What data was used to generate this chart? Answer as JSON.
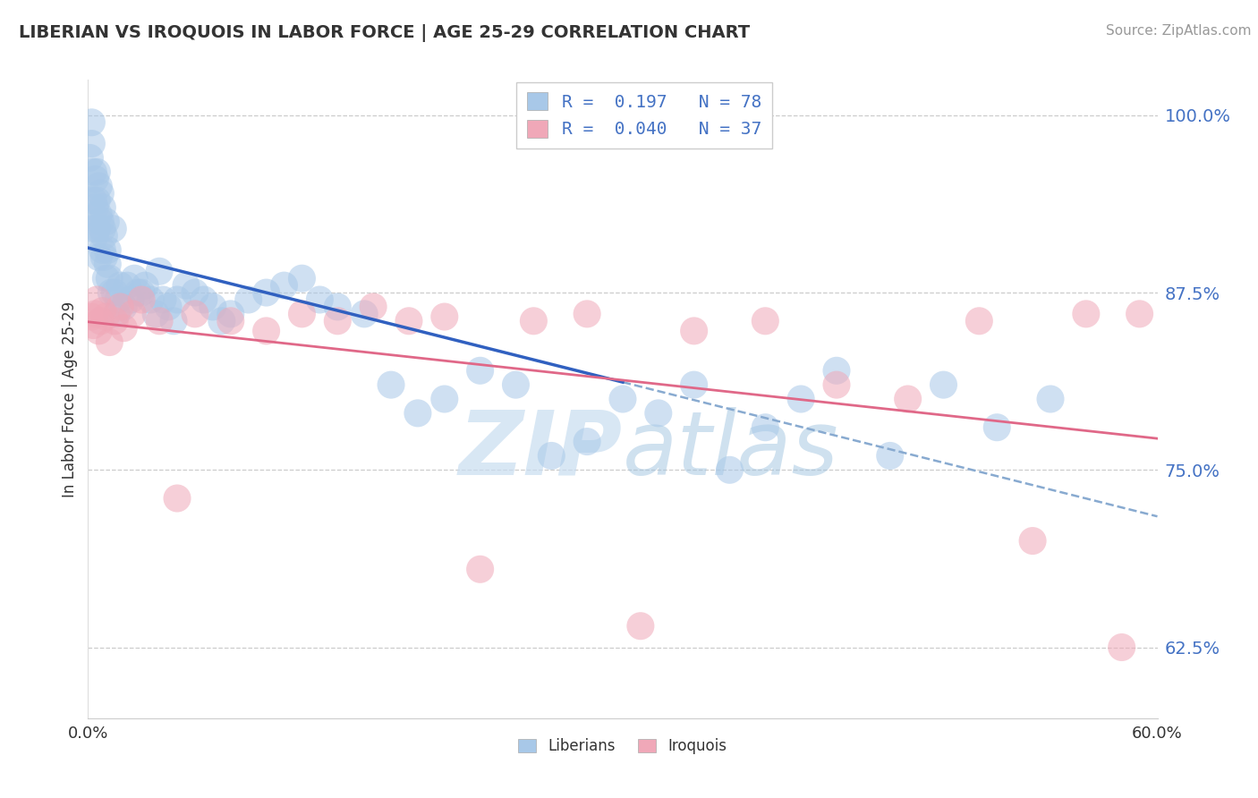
{
  "title": "LIBERIAN VS IROQUOIS IN LABOR FORCE | AGE 25-29 CORRELATION CHART",
  "source_text": "Source: ZipAtlas.com",
  "ylabel": "In Labor Force | Age 25-29",
  "xlabel_liberian": "Liberians",
  "xlabel_iroquois": "Iroquois",
  "xmin": 0.0,
  "xmax": 0.6,
  "ymin": 0.575,
  "ymax": 1.025,
  "yticks": [
    0.625,
    0.75,
    0.875,
    1.0
  ],
  "ytick_labels": [
    "62.5%",
    "75.0%",
    "87.5%",
    "100.0%"
  ],
  "xticks": [
    0.0,
    0.6
  ],
  "xtick_labels": [
    "0.0%",
    "60.0%"
  ],
  "R_liberian": 0.197,
  "N_liberian": 78,
  "R_iroquois": 0.04,
  "N_iroquois": 37,
  "color_liberian": "#a8c8e8",
  "color_iroquois": "#f0a8b8",
  "trendline_liberian_color": "#3060c0",
  "trendline_iroquois_color": "#e06888",
  "dashed_line_color": "#88aad0",
  "background_color": "#ffffff",
  "watermark_text": "ZIPatlas",
  "lib_x": [
    0.001,
    0.002,
    0.002,
    0.003,
    0.003,
    0.003,
    0.004,
    0.004,
    0.004,
    0.005,
    0.005,
    0.005,
    0.006,
    0.006,
    0.006,
    0.007,
    0.007,
    0.008,
    0.008,
    0.008,
    0.009,
    0.009,
    0.01,
    0.01,
    0.011,
    0.011,
    0.012,
    0.013,
    0.014,
    0.015,
    0.016,
    0.017,
    0.018,
    0.02,
    0.022,
    0.024,
    0.026,
    0.028,
    0.03,
    0.032,
    0.035,
    0.038,
    0.04,
    0.042,
    0.045,
    0.048,
    0.05,
    0.055,
    0.06,
    0.065,
    0.07,
    0.075,
    0.08,
    0.09,
    0.1,
    0.11,
    0.12,
    0.13,
    0.14,
    0.155,
    0.17,
    0.185,
    0.2,
    0.22,
    0.24,
    0.26,
    0.28,
    0.3,
    0.32,
    0.34,
    0.36,
    0.38,
    0.4,
    0.42,
    0.45,
    0.48,
    0.51,
    0.54
  ],
  "lib_y": [
    0.97,
    0.98,
    0.995,
    0.96,
    0.94,
    0.92,
    0.955,
    0.935,
    0.915,
    0.96,
    0.94,
    0.92,
    0.9,
    0.95,
    0.93,
    0.945,
    0.925,
    0.905,
    0.935,
    0.92,
    0.9,
    0.915,
    0.885,
    0.925,
    0.905,
    0.895,
    0.885,
    0.875,
    0.92,
    0.875,
    0.86,
    0.87,
    0.88,
    0.865,
    0.88,
    0.87,
    0.885,
    0.875,
    0.875,
    0.88,
    0.87,
    0.86,
    0.89,
    0.87,
    0.865,
    0.855,
    0.87,
    0.88,
    0.875,
    0.87,
    0.865,
    0.855,
    0.86,
    0.87,
    0.875,
    0.88,
    0.885,
    0.87,
    0.865,
    0.86,
    0.81,
    0.79,
    0.8,
    0.82,
    0.81,
    0.76,
    0.77,
    0.8,
    0.79,
    0.81,
    0.75,
    0.78,
    0.8,
    0.82,
    0.76,
    0.81,
    0.78,
    0.8
  ],
  "iro_x": [
    0.002,
    0.003,
    0.004,
    0.005,
    0.006,
    0.007,
    0.008,
    0.01,
    0.012,
    0.015,
    0.018,
    0.02,
    0.025,
    0.03,
    0.04,
    0.05,
    0.06,
    0.08,
    0.1,
    0.12,
    0.14,
    0.16,
    0.18,
    0.2,
    0.22,
    0.25,
    0.28,
    0.31,
    0.34,
    0.38,
    0.42,
    0.46,
    0.5,
    0.53,
    0.56,
    0.58,
    0.59
  ],
  "iro_y": [
    0.858,
    0.852,
    0.86,
    0.87,
    0.848,
    0.855,
    0.862,
    0.858,
    0.84,
    0.855,
    0.865,
    0.85,
    0.86,
    0.87,
    0.855,
    0.73,
    0.86,
    0.855,
    0.848,
    0.86,
    0.855,
    0.865,
    0.855,
    0.858,
    0.68,
    0.855,
    0.86,
    0.64,
    0.848,
    0.855,
    0.81,
    0.8,
    0.855,
    0.7,
    0.86,
    0.625,
    0.86
  ]
}
